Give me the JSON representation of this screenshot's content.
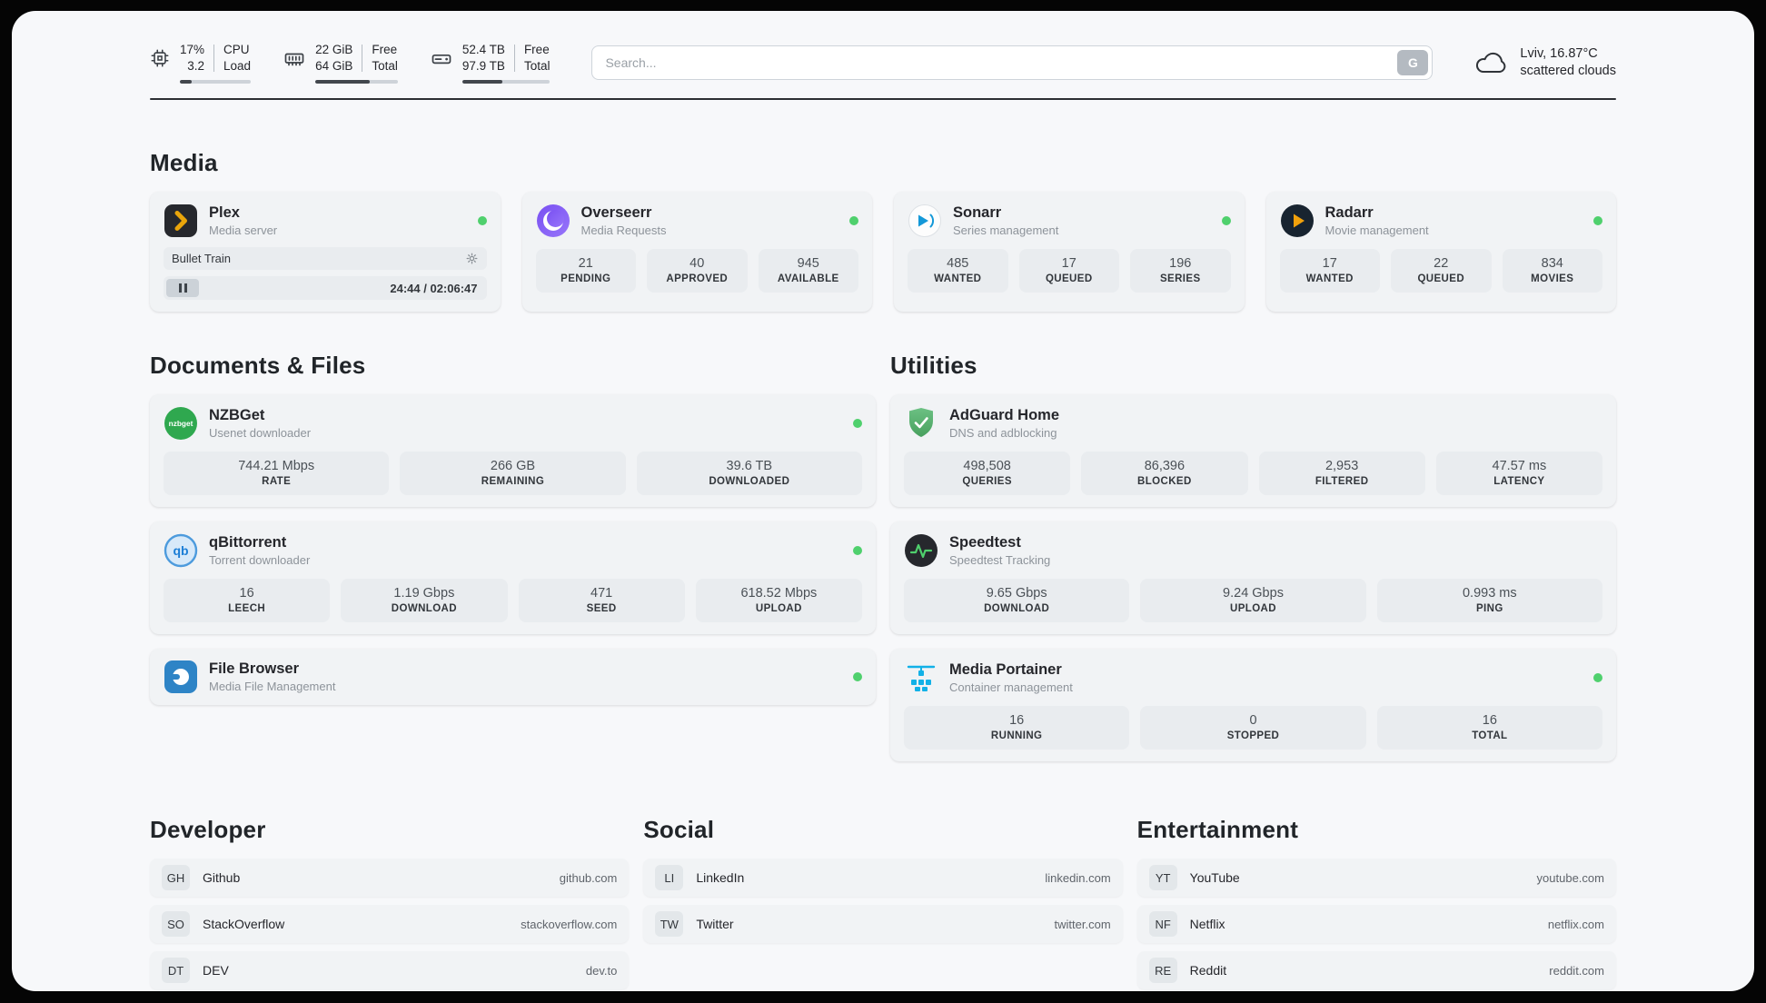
{
  "header": {
    "cpu": {
      "value_top": "17%",
      "value_bottom": "3.2",
      "label_top": "CPU",
      "label_bottom": "Load",
      "progress": 17
    },
    "ram": {
      "value_top": "22 GiB",
      "value_bottom": "64 GiB",
      "label_top": "Free",
      "label_bottom": "Total",
      "progress": 66
    },
    "disk": {
      "value_top": "52.4 TB",
      "value_bottom": "97.9 TB",
      "label_top": "Free",
      "label_bottom": "Total",
      "progress": 46
    },
    "search": {
      "placeholder": "Search...",
      "button_label": "G"
    },
    "weather": {
      "location": "Lviv, 16.87°C",
      "condition": "scattered clouds"
    }
  },
  "sections": {
    "media": {
      "title": "Media",
      "plex": {
        "name": "Plex",
        "subtitle": "Media server",
        "now_playing": "Bullet Train",
        "time": "24:44 / 02:06:47"
      },
      "overseerr": {
        "name": "Overseerr",
        "subtitle": "Media Requests",
        "stats": [
          {
            "value": "21",
            "label": "PENDING"
          },
          {
            "value": "40",
            "label": "APPROVED"
          },
          {
            "value": "945",
            "label": "AVAILABLE"
          }
        ]
      },
      "sonarr": {
        "name": "Sonarr",
        "subtitle": "Series management",
        "stats": [
          {
            "value": "485",
            "label": "WANTED"
          },
          {
            "value": "17",
            "label": "QUEUED"
          },
          {
            "value": "196",
            "label": "SERIES"
          }
        ]
      },
      "radarr": {
        "name": "Radarr",
        "subtitle": "Movie management",
        "stats": [
          {
            "value": "17",
            "label": "WANTED"
          },
          {
            "value": "22",
            "label": "QUEUED"
          },
          {
            "value": "834",
            "label": "MOVIES"
          }
        ]
      }
    },
    "documents": {
      "title": "Documents & Files",
      "nzbget": {
        "name": "NZBGet",
        "subtitle": "Usenet downloader",
        "stats": [
          {
            "value": "744.21 Mbps",
            "label": "RATE"
          },
          {
            "value": "266 GB",
            "label": "REMAINING"
          },
          {
            "value": "39.6 TB",
            "label": "DOWNLOADED"
          }
        ]
      },
      "qbittorrent": {
        "name": "qBittorrent",
        "subtitle": "Torrent downloader",
        "stats": [
          {
            "value": "16",
            "label": "LEECH"
          },
          {
            "value": "1.19 Gbps",
            "label": "DOWNLOAD"
          },
          {
            "value": "471",
            "label": "SEED"
          },
          {
            "value": "618.52 Mbps",
            "label": "UPLOAD"
          }
        ]
      },
      "filebrowser": {
        "name": "File Browser",
        "subtitle": "Media File Management"
      }
    },
    "utilities": {
      "title": "Utilities",
      "adguard": {
        "name": "AdGuard Home",
        "subtitle": "DNS and adblocking",
        "stats": [
          {
            "value": "498,508",
            "label": "QUERIES"
          },
          {
            "value": "86,396",
            "label": "BLOCKED"
          },
          {
            "value": "2,953",
            "label": "FILTERED"
          },
          {
            "value": "47.57 ms",
            "label": "LATENCY"
          }
        ]
      },
      "speedtest": {
        "name": "Speedtest",
        "subtitle": "Speedtest Tracking",
        "stats": [
          {
            "value": "9.65 Gbps",
            "label": "DOWNLOAD"
          },
          {
            "value": "9.24 Gbps",
            "label": "UPLOAD"
          },
          {
            "value": "0.993 ms",
            "label": "PING"
          }
        ]
      },
      "portainer": {
        "name": "Media Portainer",
        "subtitle": "Container management",
        "stats": [
          {
            "value": "16",
            "label": "RUNNING"
          },
          {
            "value": "0",
            "label": "STOPPED"
          },
          {
            "value": "16",
            "label": "TOTAL"
          }
        ]
      }
    },
    "developer": {
      "title": "Developer",
      "links": [
        {
          "abbr": "GH",
          "name": "Github",
          "url": "github.com"
        },
        {
          "abbr": "SO",
          "name": "StackOverflow",
          "url": "stackoverflow.com"
        },
        {
          "abbr": "DT",
          "name": "DEV",
          "url": "dev.to"
        }
      ]
    },
    "social": {
      "title": "Social",
      "links": [
        {
          "abbr": "LI",
          "name": "LinkedIn",
          "url": "linkedin.com"
        },
        {
          "abbr": "TW",
          "name": "Twitter",
          "url": "twitter.com"
        }
      ]
    },
    "entertainment": {
      "title": "Entertainment",
      "links": [
        {
          "abbr": "YT",
          "name": "YouTube",
          "url": "youtube.com"
        },
        {
          "abbr": "NF",
          "name": "Netflix",
          "url": "netflix.com"
        },
        {
          "abbr": "RE",
          "name": "Reddit",
          "url": "reddit.com"
        }
      ]
    }
  },
  "colors": {
    "status_online": "#4fd06d",
    "plex_accent": "#e9a50b",
    "overseerr_accent": "#7950f2",
    "sonarr_accent": "#1398d8",
    "radarr_accent": "#f2a20c",
    "nzbget_accent": "#2fa84f",
    "qbittorrent_accent": "#1c7ed6",
    "filebrowser_accent": "#2e84c6",
    "adguard_accent": "#48a05e",
    "speedtest_accent": "#4fd06d",
    "portainer_accent": "#12b1e7"
  }
}
